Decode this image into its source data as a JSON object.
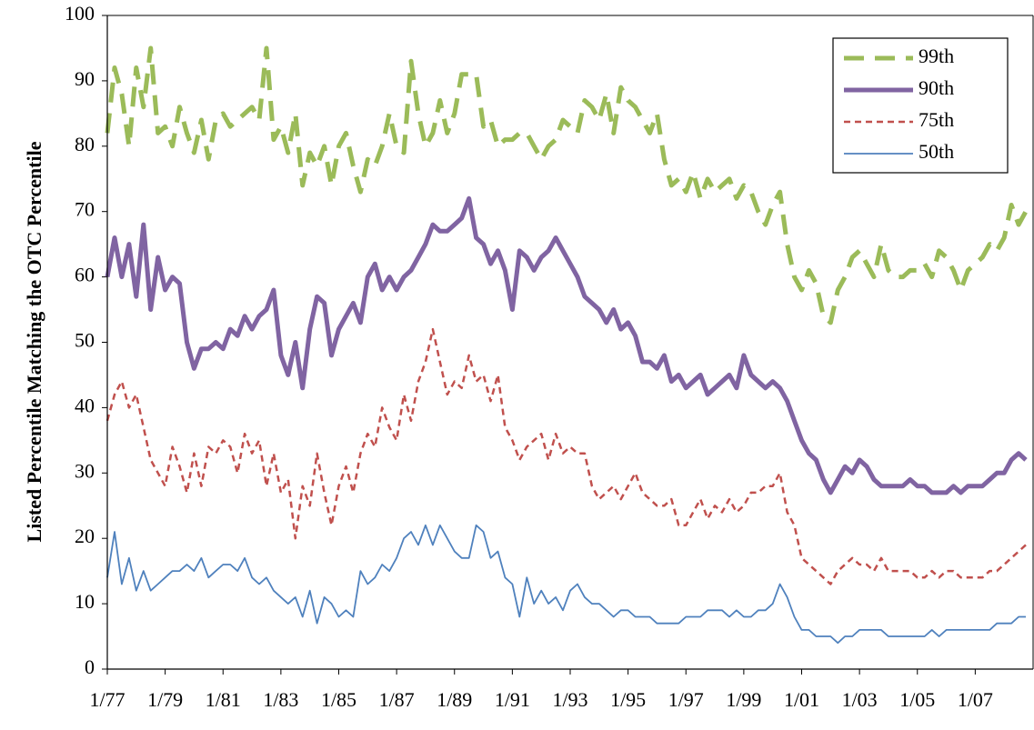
{
  "chart_data": {
    "type": "line",
    "y_label": "Listed Percentile Matching the OTC Percentile",
    "categories": [
      "1/77",
      null,
      null,
      null,
      null,
      null,
      null,
      null,
      "1/79",
      null,
      null,
      null,
      null,
      null,
      null,
      null,
      "1/81",
      null,
      null,
      null,
      null,
      null,
      null,
      null,
      "1/83",
      null,
      null,
      null,
      null,
      null,
      null,
      null,
      "1/85",
      null,
      null,
      null,
      null,
      null,
      null,
      null,
      "1/87",
      null,
      null,
      null,
      null,
      null,
      null,
      null,
      "1/89",
      null,
      null,
      null,
      null,
      null,
      null,
      null,
      "1/91",
      null,
      null,
      null,
      null,
      null,
      null,
      null,
      "1/93",
      null,
      null,
      null,
      null,
      null,
      null,
      null,
      "1/95",
      null,
      null,
      null,
      null,
      null,
      null,
      null,
      "1/97",
      null,
      null,
      null,
      null,
      null,
      null,
      null,
      "1/99",
      null,
      null,
      null,
      null,
      null,
      null,
      null,
      "1/01",
      null,
      null,
      null,
      null,
      null,
      null,
      null,
      "1/03",
      null,
      null,
      null,
      null,
      null,
      null,
      null,
      "1/05",
      null,
      null,
      null,
      null,
      null,
      null,
      null,
      "1/07",
      null,
      null,
      null,
      null,
      null,
      null,
      null
    ],
    "series": [
      {
        "name": "99th",
        "color": "#9bbb59",
        "line_style": "long-dash",
        "values": [
          82,
          92,
          88,
          80,
          92,
          86,
          95,
          82,
          83,
          80,
          86,
          82,
          79,
          84,
          78,
          84,
          85,
          83,
          84,
          85,
          86,
          84,
          95,
          81,
          83,
          79,
          85,
          74,
          79,
          77,
          80,
          74,
          80,
          82,
          77,
          73,
          78,
          77,
          80,
          85,
          80,
          79,
          93,
          85,
          80,
          82,
          87,
          82,
          85,
          91,
          91,
          91,
          83,
          84,
          80,
          81,
          81,
          82,
          82,
          80,
          78,
          80,
          81,
          84,
          83,
          82,
          87,
          86,
          84,
          88,
          82,
          89,
          87,
          86,
          84,
          82,
          85,
          78,
          74,
          75,
          73,
          76,
          72,
          75,
          73,
          74,
          75,
          72,
          74,
          73,
          70,
          68,
          71,
          73,
          65,
          60,
          58,
          61,
          59,
          54,
          53,
          58,
          60,
          63,
          64,
          62,
          60,
          65,
          61,
          60,
          60,
          61,
          61,
          62,
          60,
          64,
          63,
          61,
          58,
          61,
          62,
          63,
          65,
          64,
          66,
          71,
          68,
          70
        ]
      },
      {
        "name": "90th",
        "color": "#8064a2",
        "line_style": "thick",
        "values": [
          60,
          66,
          60,
          65,
          57,
          68,
          55,
          63,
          58,
          60,
          59,
          50,
          46,
          49,
          49,
          50,
          49,
          52,
          51,
          54,
          52,
          54,
          55,
          58,
          48,
          45,
          50,
          43,
          52,
          57,
          56,
          48,
          52,
          54,
          56,
          53,
          60,
          62,
          58,
          60,
          58,
          60,
          61,
          63,
          65,
          68,
          67,
          67,
          68,
          69,
          72,
          66,
          65,
          62,
          64,
          61,
          55,
          64,
          63,
          61,
          63,
          64,
          66,
          64,
          62,
          60,
          57,
          56,
          55,
          53,
          55,
          52,
          53,
          51,
          47,
          47,
          46,
          48,
          44,
          45,
          43,
          44,
          45,
          42,
          43,
          44,
          45,
          43,
          48,
          45,
          44,
          43,
          44,
          43,
          41,
          38,
          35,
          33,
          32,
          29,
          27,
          29,
          31,
          30,
          32,
          31,
          29,
          28,
          28,
          28,
          28,
          29,
          28,
          28,
          27,
          27,
          27,
          28,
          27,
          28,
          28,
          28,
          29,
          30,
          30,
          32,
          33,
          32
        ]
      },
      {
        "name": "75th",
        "color": "#c0504d",
        "line_style": "short-dash",
        "values": [
          38,
          42,
          44,
          40,
          42,
          37,
          32,
          30,
          28,
          34,
          31,
          27,
          33,
          28,
          34,
          33,
          35,
          34,
          30,
          36,
          33,
          35,
          28,
          33,
          27,
          29,
          20,
          28,
          25,
          33,
          27,
          22,
          28,
          31,
          27,
          33,
          36,
          34,
          40,
          37,
          35,
          42,
          38,
          44,
          47,
          52,
          47,
          42,
          44,
          43,
          48,
          44,
          45,
          41,
          45,
          37,
          35,
          32,
          34,
          35,
          36,
          32,
          36,
          33,
          34,
          33,
          33,
          28,
          26,
          27,
          28,
          26,
          28,
          30,
          27,
          26,
          25,
          25,
          26,
          22,
          22,
          24,
          26,
          23,
          25,
          24,
          26,
          24,
          25,
          27,
          27,
          28,
          28,
          30,
          24,
          22,
          17,
          16,
          15,
          14,
          13,
          15,
          16,
          17,
          16,
          16,
          15,
          17,
          15,
          15,
          15,
          15,
          14,
          14,
          15,
          14,
          15,
          15,
          14,
          14,
          14,
          14,
          15,
          15,
          16,
          17,
          18,
          19
        ]
      },
      {
        "name": "50th",
        "color": "#4f81bd",
        "line_style": "thin",
        "values": [
          14,
          21,
          13,
          17,
          12,
          15,
          12,
          13,
          14,
          15,
          15,
          16,
          15,
          17,
          14,
          15,
          16,
          16,
          15,
          17,
          14,
          13,
          14,
          12,
          11,
          10,
          11,
          8,
          12,
          7,
          11,
          10,
          8,
          9,
          8,
          15,
          13,
          14,
          16,
          15,
          17,
          20,
          21,
          19,
          22,
          19,
          22,
          20,
          18,
          17,
          17,
          22,
          21,
          17,
          18,
          14,
          13,
          8,
          14,
          10,
          12,
          10,
          11,
          9,
          12,
          13,
          11,
          10,
          10,
          9,
          8,
          9,
          9,
          8,
          8,
          8,
          7,
          7,
          7,
          7,
          8,
          8,
          8,
          9,
          9,
          9,
          8,
          9,
          8,
          8,
          9,
          9,
          10,
          13,
          11,
          8,
          6,
          6,
          5,
          5,
          5,
          4,
          5,
          5,
          6,
          6,
          6,
          6,
          5,
          5,
          5,
          5,
          5,
          5,
          6,
          5,
          6,
          6,
          6,
          6,
          6,
          6,
          6,
          7,
          7,
          7,
          8,
          8
        ]
      }
    ],
    "ylim": [
      0,
      100
    ],
    "yticks": [
      0,
      10,
      20,
      30,
      40,
      50,
      60,
      70,
      80,
      90,
      100
    ],
    "legend": "upper right"
  }
}
